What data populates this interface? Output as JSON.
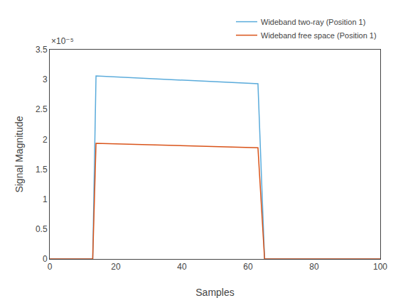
{
  "chart_data": {
    "type": "line",
    "title": "",
    "xlabel": "Samples",
    "ylabel": "Signal Magnitude",
    "annotation": "×10⁻⁵",
    "x": [
      0,
      13,
      13,
      14,
      14,
      63,
      63,
      65,
      65,
      100
    ],
    "series": [
      {
        "name": "Wideband two-ray (Position 1)",
        "color": "#5AABDB",
        "values": [
          0,
          0,
          0.0,
          3.06e-05,
          3.06e-05,
          2.93e-05,
          2.93e-05,
          0,
          0,
          0
        ]
      },
      {
        "name": "Wideband free space (Position 1)",
        "color": "#D95319",
        "values": [
          0,
          0,
          0.0,
          1.935e-05,
          1.935e-05,
          1.86e-05,
          1.86e-05,
          0,
          0,
          0
        ]
      }
    ],
    "xlim": [
      0,
      100
    ],
    "xticks": [
      0,
      20,
      40,
      60,
      80,
      100
    ],
    "ylim": [
      0,
      3.5e-05
    ],
    "yticks": [
      0,
      {
        "value": 5e-06,
        "label": "0.5"
      },
      {
        "value": 1e-05,
        "label": "1"
      },
      {
        "value": 1.5e-05,
        "label": "1.5"
      },
      {
        "value": 2e-05,
        "label": "2"
      },
      {
        "value": 2.5e-05,
        "label": "2.5"
      },
      {
        "value": 3e-05,
        "label": "3"
      },
      {
        "value": 3.5e-05,
        "label": "3.5"
      }
    ],
    "grid": false,
    "legend": "top right"
  }
}
